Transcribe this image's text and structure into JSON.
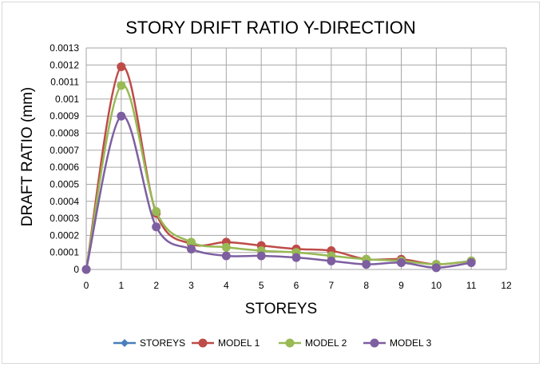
{
  "chart_data": {
    "type": "line",
    "title": "STORY DRIFT RATIO Y-DIRECTION",
    "xlabel": "STOREYS",
    "ylabel": "DRAFT RATIO (mm)",
    "xlim": [
      0,
      12
    ],
    "ylim": [
      0,
      0.0013
    ],
    "xticks": [
      "0",
      "1",
      "2",
      "3",
      "4",
      "5",
      "6",
      "7",
      "8",
      "9",
      "10",
      "11",
      "12"
    ],
    "yticks": [
      "0",
      "0.0001",
      "0.0002",
      "0.0003",
      "0.0004",
      "0.0005",
      "0.0006",
      "0.0007",
      "0.0008",
      "0.0009",
      "0.001",
      "0.0011",
      "0.0012",
      "0.0013"
    ],
    "grid": true,
    "legend_position": "bottom",
    "series": [
      {
        "name": "STOREYS",
        "color": "#4a7ebb",
        "marker": "diamond",
        "x": [
          0
        ],
        "values": [
          0
        ]
      },
      {
        "name": "MODEL 1",
        "color": "#be4b48",
        "marker": "circle",
        "x": [
          0,
          1,
          2,
          3,
          4,
          5,
          6,
          7,
          8,
          9,
          10,
          11
        ],
        "values": [
          0,
          0.00119,
          0.00033,
          0.00015,
          0.00016,
          0.00014,
          0.00012,
          0.00011,
          6e-05,
          6e-05,
          3e-05,
          5e-05
        ]
      },
      {
        "name": "MODEL 2",
        "color": "#98b954",
        "marker": "circle",
        "x": [
          0,
          1,
          2,
          3,
          4,
          5,
          6,
          7,
          8,
          9,
          10,
          11
        ],
        "values": [
          0,
          0.00108,
          0.00034,
          0.00016,
          0.00013,
          0.00011,
          0.0001,
          8e-05,
          6e-05,
          5e-05,
          3e-05,
          5e-05
        ]
      },
      {
        "name": "MODEL 3",
        "color": "#7d5fa0",
        "marker": "circle",
        "x": [
          0,
          1,
          2,
          3,
          4,
          5,
          6,
          7,
          8,
          9,
          10,
          11
        ],
        "values": [
          0,
          0.0009,
          0.00025,
          0.00012,
          8e-05,
          8e-05,
          7e-05,
          5e-05,
          3e-05,
          4e-05,
          1e-05,
          4e-05
        ]
      }
    ]
  }
}
